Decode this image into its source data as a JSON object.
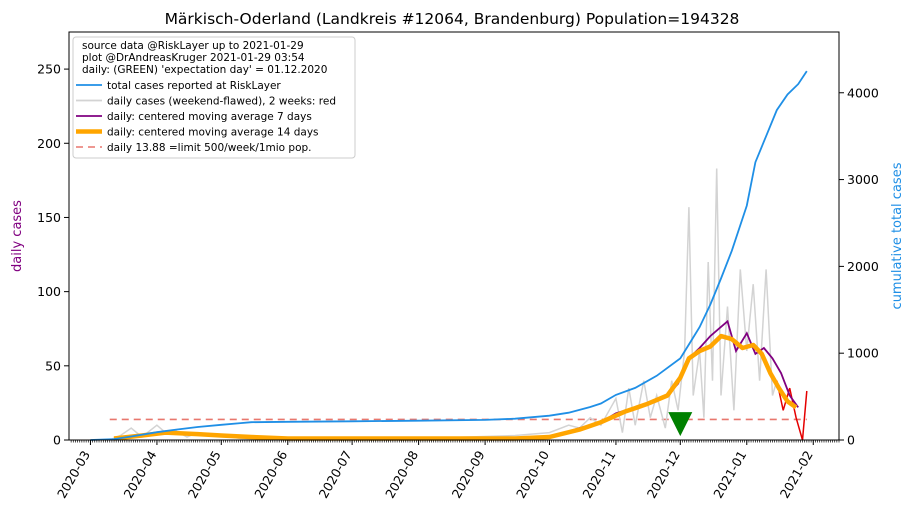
{
  "chart_data": {
    "type": "line",
    "title": "Märkisch-Oderland (Landkreis #12064, Brandenburg) Population=194328",
    "ylabel_left": "daily cases",
    "ylabel_right": "cumulative total cases",
    "ylim_left": [
      0,
      275
    ],
    "ylim_right": [
      0,
      4700
    ],
    "xlim": [
      "2020-02-20",
      "2021-02-13"
    ],
    "y_ticks_left": [
      0,
      50,
      100,
      150,
      200,
      250
    ],
    "y_ticks_right": [
      0,
      1000,
      2000,
      3000,
      4000
    ],
    "x_ticks": [
      "2020-03",
      "2020-04",
      "2020-05",
      "2020-06",
      "2020-07",
      "2020-08",
      "2020-09",
      "2020-10",
      "2020-11",
      "2020-12",
      "2021-01",
      "2021-02"
    ],
    "grid": false,
    "legend_position": "top-left",
    "legend_header": [
      "source data @RiskLayer up to 2021-01-29",
      "plot @DrAndreasKruger 2021-01-29 03:54",
      "daily: (GREEN) 'expectation day' = 01.12.2020"
    ],
    "series": [
      {
        "name": "total cases reported at RiskLayer",
        "axis": "right",
        "color": "#1f8fe6",
        "points": [
          [
            "2020-03-01",
            0
          ],
          [
            "2020-03-12",
            10
          ],
          [
            "2020-03-20",
            40
          ],
          [
            "2020-04-01",
            90
          ],
          [
            "2020-04-10",
            120
          ],
          [
            "2020-04-20",
            150
          ],
          [
            "2020-05-01",
            175
          ],
          [
            "2020-05-10",
            195
          ],
          [
            "2020-05-15",
            205
          ],
          [
            "2020-06-01",
            210
          ],
          [
            "2020-07-01",
            215
          ],
          [
            "2020-08-01",
            222
          ],
          [
            "2020-09-01",
            232
          ],
          [
            "2020-09-15",
            245
          ],
          [
            "2020-10-01",
            280
          ],
          [
            "2020-10-10",
            315
          ],
          [
            "2020-10-20",
            380
          ],
          [
            "2020-10-25",
            420
          ],
          [
            "2020-11-01",
            520
          ],
          [
            "2020-11-10",
            600
          ],
          [
            "2020-11-20",
            740
          ],
          [
            "2020-12-01",
            940
          ],
          [
            "2020-12-05",
            1100
          ],
          [
            "2020-12-10",
            1300
          ],
          [
            "2020-12-15",
            1560
          ],
          [
            "2020-12-20",
            1860
          ],
          [
            "2020-12-25",
            2180
          ],
          [
            "2021-01-01",
            2700
          ],
          [
            "2021-01-05",
            3200
          ],
          [
            "2021-01-10",
            3500
          ],
          [
            "2021-01-15",
            3800
          ],
          [
            "2021-01-20",
            3980
          ],
          [
            "2021-01-25",
            4100
          ],
          [
            "2021-01-29",
            4250
          ]
        ]
      },
      {
        "name": "daily cases (weekend-flawed), 2 weeks: red",
        "axis": "left",
        "color": "#d3d3d3",
        "recent_color": "#e50000",
        "recent_from": "2021-01-15",
        "points": [
          [
            "2020-03-10",
            0
          ],
          [
            "2020-03-15",
            3
          ],
          [
            "2020-03-20",
            8
          ],
          [
            "2020-03-25",
            2
          ],
          [
            "2020-04-01",
            10
          ],
          [
            "2020-04-05",
            5
          ],
          [
            "2020-04-10",
            6
          ],
          [
            "2020-04-15",
            2
          ],
          [
            "2020-04-20",
            5
          ],
          [
            "2020-05-01",
            3
          ],
          [
            "2020-05-10",
            1
          ],
          [
            "2020-06-01",
            0
          ],
          [
            "2020-08-01",
            1
          ],
          [
            "2020-09-15",
            3
          ],
          [
            "2020-10-01",
            5
          ],
          [
            "2020-10-10",
            10
          ],
          [
            "2020-10-15",
            8
          ],
          [
            "2020-10-20",
            15
          ],
          [
            "2020-10-25",
            10
          ],
          [
            "2020-11-01",
            28
          ],
          [
            "2020-11-04",
            5
          ],
          [
            "2020-11-07",
            35
          ],
          [
            "2020-11-10",
            10
          ],
          [
            "2020-11-14",
            40
          ],
          [
            "2020-11-17",
            15
          ],
          [
            "2020-11-20",
            30
          ],
          [
            "2020-11-24",
            8
          ],
          [
            "2020-11-27",
            40
          ],
          [
            "2020-11-30",
            20
          ],
          [
            "2020-12-03",
            60
          ],
          [
            "2020-12-05",
            157
          ],
          [
            "2020-12-07",
            30
          ],
          [
            "2020-12-10",
            60
          ],
          [
            "2020-12-12",
            15
          ],
          [
            "2020-12-14",
            120
          ],
          [
            "2020-12-16",
            40
          ],
          [
            "2020-12-18",
            183
          ],
          [
            "2020-12-20",
            30
          ],
          [
            "2020-12-23",
            90
          ],
          [
            "2020-12-26",
            20
          ],
          [
            "2020-12-29",
            115
          ],
          [
            "2021-01-01",
            60
          ],
          [
            "2021-01-04",
            105
          ],
          [
            "2021-01-07",
            40
          ],
          [
            "2021-01-10",
            115
          ],
          [
            "2021-01-13",
            30
          ],
          [
            "2021-01-15",
            40
          ],
          [
            "2021-01-18",
            20
          ],
          [
            "2021-01-21",
            35
          ],
          [
            "2021-01-24",
            15
          ],
          [
            "2021-01-27",
            0
          ],
          [
            "2021-01-29",
            33
          ]
        ]
      },
      {
        "name": "daily: centered moving average 7 days",
        "axis": "left",
        "color": "#800080",
        "points": [
          [
            "2020-03-15",
            1
          ],
          [
            "2020-04-01",
            4
          ],
          [
            "2020-04-15",
            4
          ],
          [
            "2020-05-01",
            3
          ],
          [
            "2020-05-15",
            2
          ],
          [
            "2020-06-01",
            1
          ],
          [
            "2020-08-01",
            1
          ],
          [
            "2020-09-15",
            1
          ],
          [
            "2020-10-01",
            2
          ],
          [
            "2020-10-15",
            8
          ],
          [
            "2020-10-25",
            12
          ],
          [
            "2020-11-01",
            18
          ],
          [
            "2020-11-10",
            22
          ],
          [
            "2020-11-20",
            26
          ],
          [
            "2020-11-25",
            30
          ],
          [
            "2020-11-30",
            38
          ],
          [
            "2020-12-05",
            55
          ],
          [
            "2020-12-10",
            62
          ],
          [
            "2020-12-15",
            70
          ],
          [
            "2020-12-19",
            75
          ],
          [
            "2020-12-23",
            80
          ],
          [
            "2020-12-27",
            60
          ],
          [
            "2021-01-01",
            72
          ],
          [
            "2021-01-05",
            58
          ],
          [
            "2021-01-09",
            62
          ],
          [
            "2021-01-13",
            55
          ],
          [
            "2021-01-17",
            45
          ],
          [
            "2021-01-21",
            30
          ],
          [
            "2021-01-25",
            22
          ]
        ]
      },
      {
        "name": "daily: centered moving average 14 days",
        "axis": "left",
        "color": "#ffa500",
        "points": [
          [
            "2020-03-12",
            1
          ],
          [
            "2020-03-25",
            3
          ],
          [
            "2020-04-05",
            5
          ],
          [
            "2020-04-20",
            4
          ],
          [
            "2020-05-01",
            3
          ],
          [
            "2020-05-15",
            2
          ],
          [
            "2020-06-01",
            1
          ],
          [
            "2020-08-01",
            1
          ],
          [
            "2020-09-15",
            1
          ],
          [
            "2020-10-01",
            2
          ],
          [
            "2020-10-15",
            7
          ],
          [
            "2020-10-25",
            12
          ],
          [
            "2020-11-05",
            19
          ],
          [
            "2020-11-15",
            24
          ],
          [
            "2020-11-25",
            30
          ],
          [
            "2020-12-01",
            42
          ],
          [
            "2020-12-05",
            55
          ],
          [
            "2020-12-10",
            60
          ],
          [
            "2020-12-15",
            63
          ],
          [
            "2020-12-20",
            70
          ],
          [
            "2020-12-25",
            68
          ],
          [
            "2020-12-30",
            62
          ],
          [
            "2021-01-04",
            64
          ],
          [
            "2021-01-08",
            58
          ],
          [
            "2021-01-12",
            45
          ],
          [
            "2021-01-16",
            35
          ],
          [
            "2021-01-20",
            26
          ],
          [
            "2021-01-24",
            22
          ]
        ]
      },
      {
        "name": "daily 13.88 =limit 500/week/1mio pop.",
        "axis": "left",
        "color": "#e8776e",
        "dashed": true,
        "value": 13.88,
        "from": "2020-03-10",
        "to": "2021-01-29"
      }
    ],
    "marker": {
      "date": "2020-12-01",
      "value": 8,
      "color": "#008000",
      "shape": "triangle-down"
    }
  }
}
